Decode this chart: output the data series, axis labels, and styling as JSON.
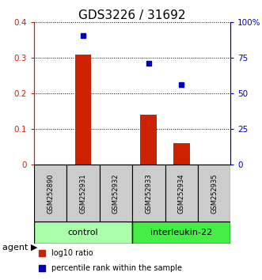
{
  "title": "GDS3226 / 31692",
  "samples": [
    "GSM252890",
    "GSM252931",
    "GSM252932",
    "GSM252933",
    "GSM252934",
    "GSM252935"
  ],
  "log10_ratio": [
    0.0,
    0.31,
    0.0,
    0.14,
    0.06,
    0.0
  ],
  "percentile_rank": [
    null,
    91.0,
    null,
    71.5,
    56.0,
    null
  ],
  "groups": [
    {
      "label": "control",
      "start": 0,
      "end": 3,
      "color": "#aaffaa"
    },
    {
      "label": "interleukin-22",
      "start": 3,
      "end": 6,
      "color": "#44ee44"
    }
  ],
  "ylim_left": [
    0,
    0.4
  ],
  "ylim_right": [
    0,
    100
  ],
  "yticks_left": [
    0,
    0.1,
    0.2,
    0.3,
    0.4
  ],
  "ytick_labels_left": [
    "0",
    "0.1",
    "0.2",
    "0.3",
    "0.4"
  ],
  "yticks_right": [
    0,
    25,
    50,
    75,
    100
  ],
  "ytick_labels_right": [
    "0",
    "25",
    "50",
    "75",
    "100%"
  ],
  "bar_color": "#cc2200",
  "scatter_color": "#0000bb",
  "left_axis_color": "#cc2200",
  "right_axis_color": "#0000bb",
  "title_fontsize": 11,
  "tick_fontsize": 7.5,
  "legend_red_label": "log10 ratio",
  "legend_blue_label": "percentile rank within the sample",
  "agent_label": "agent",
  "bar_width": 0.5,
  "sample_box_color": "#cccccc",
  "figure_bg": "#ffffff"
}
